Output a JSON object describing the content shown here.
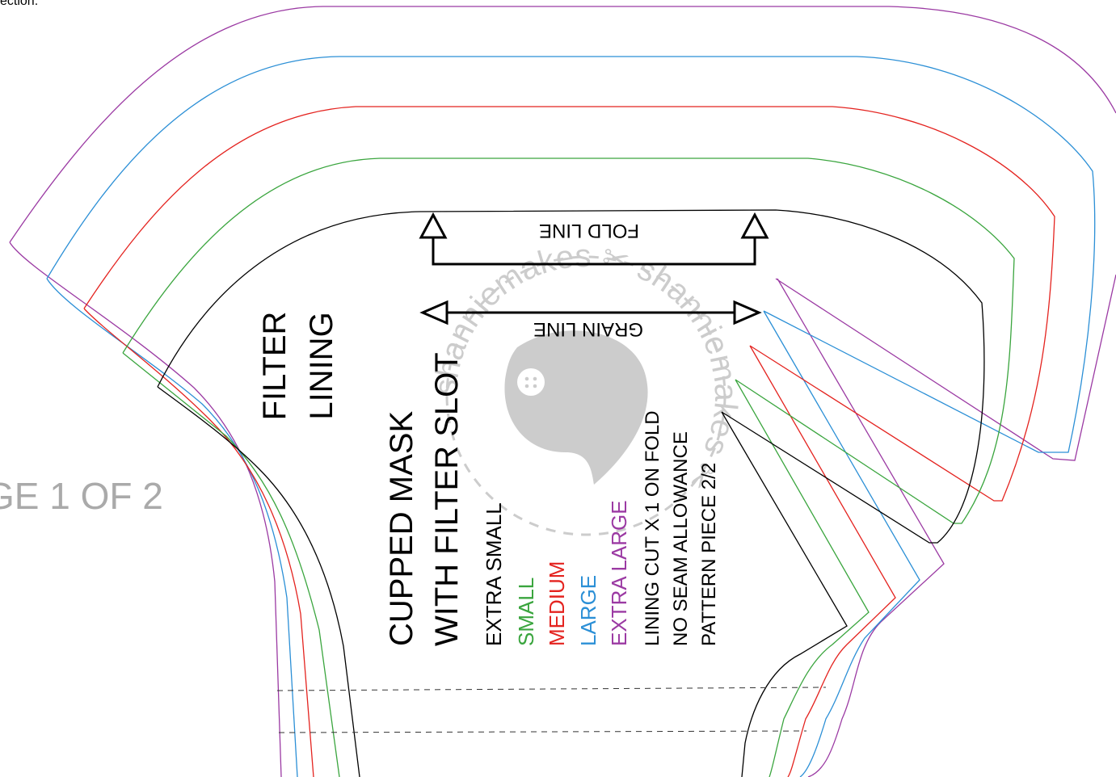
{
  "top_text": "ection.",
  "page_label": "GE 1 OF 2",
  "fold_label": "FOLD LINE",
  "grain_label": "GRAIN LINE",
  "piece_title_1": "FILTER",
  "piece_title_2": "LINING",
  "mask_title_1": "CUPPED MASK",
  "mask_title_2": "WITH FILTER SLOT",
  "sizes": [
    {
      "label": "EXTRA SMALL",
      "color": "#000000"
    },
    {
      "label": "SMALL",
      "color": "#3aa53e"
    },
    {
      "label": "MEDIUM",
      "color": "#e4231f"
    },
    {
      "label": "LARGE",
      "color": "#2b8fd6"
    },
    {
      "label": "EXTRA LARGE",
      "color": "#9b3aa3"
    }
  ],
  "instructions": [
    "LINING CUT X 1 ON FOLD",
    "NO SEAM ALLOWANCE",
    "PATTERN PIECE 2/2"
  ],
  "watermark": {
    "text": "shanniemakes ✂ shanniemakes ✂",
    "badge": "shannie makes",
    "color": "#cccccc"
  },
  "colors": {
    "xs": "#000000",
    "s": "#3aa53e",
    "m": "#e4231f",
    "l": "#2b8fd6",
    "xl": "#9b3aa3",
    "page_label": "#aaaaaa"
  }
}
